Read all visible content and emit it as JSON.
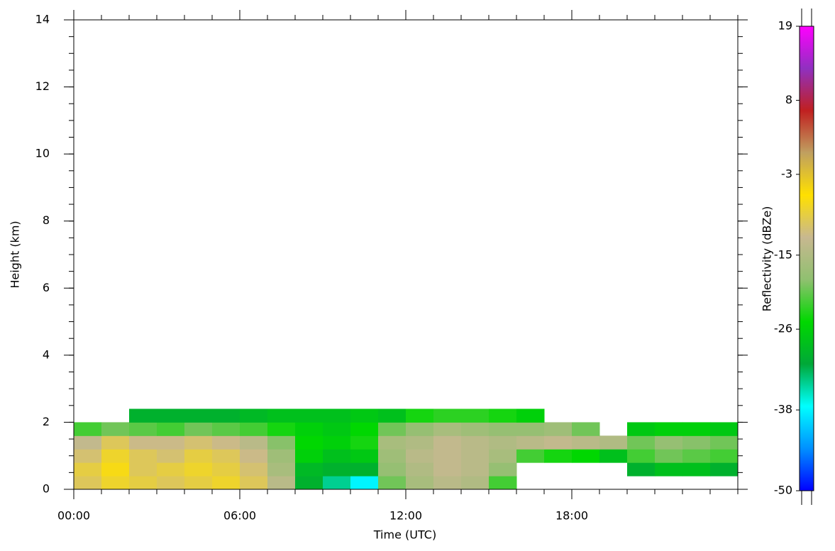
{
  "chart_data": {
    "type": "heatmap",
    "x_label": "Time (UTC)",
    "y_label": "Height (km)",
    "colorbar_label": "Reflectivity (dBZe)",
    "xlim": [
      0,
      24
    ],
    "xticks": [
      {
        "value": 0,
        "label": "00:00"
      },
      {
        "value": 6,
        "label": "06:00"
      },
      {
        "value": 12,
        "label": "12:00"
      },
      {
        "value": 18,
        "label": "18:00"
      }
    ],
    "ylim": [
      0,
      14
    ],
    "yticks": [
      0,
      2,
      4,
      6,
      8,
      10,
      12,
      14
    ],
    "zlim": [
      -50,
      19
    ],
    "zticks": [
      -50,
      -38,
      -26,
      -15,
      -3,
      8,
      19
    ],
    "colors": [
      "#0000ff",
      "#0090ff",
      "#00ffff",
      "#00a838",
      "#00d800",
      "#90c070",
      "#c8b890",
      "#ffe000",
      "#c0a060",
      "#c02020",
      "#9030c0",
      "#ff00ff"
    ],
    "xbins": [
      0,
      1,
      2,
      3,
      4,
      5,
      6,
      7,
      8,
      9,
      10,
      11,
      12,
      13,
      14,
      15,
      16,
      17,
      18,
      19,
      20,
      21,
      22,
      23,
      24
    ],
    "ybins": [
      0,
      0.4,
      0.8,
      1.2,
      1.6,
      2.0,
      2.4
    ],
    "z": [
      [
        -10,
        -8,
        -9,
        -10,
        -9,
        -8,
        -10,
        -14,
        -30,
        -34,
        -38,
        -20,
        -16,
        -14,
        -15,
        -22,
        null,
        null,
        null,
        null,
        null,
        null,
        null,
        null
      ],
      [
        -9,
        -7,
        -10,
        -9,
        -8,
        -9,
        -11,
        -16,
        -29,
        -30,
        -30,
        -18,
        -15,
        -13,
        -14,
        -18,
        null,
        null,
        null,
        null,
        -30,
        -28,
        -28,
        -30
      ],
      [
        -11,
        -8,
        -10,
        -11,
        -9,
        -10,
        -12,
        -17,
        -26,
        -28,
        -27,
        -17,
        -14,
        -13,
        -14,
        -16,
        -22,
        -24,
        -25,
        -28,
        -22,
        -20,
        -21,
        -22
      ],
      [
        -13,
        -10,
        -12,
        -12,
        -11,
        -12,
        -14,
        -19,
        -25,
        -26,
        -24,
        -16,
        -15,
        -13,
        -14,
        -15,
        -14,
        -13,
        -14,
        -15,
        -20,
        -18,
        -19,
        -20
      ],
      [
        -22,
        -20,
        -21,
        -22,
        -20,
        -21,
        -22,
        -24,
        -26,
        -27,
        -25,
        -20,
        -18,
        -16,
        -17,
        -18,
        -18,
        -17,
        -20,
        null,
        -27,
        -26,
        -26,
        -27
      ],
      [
        null,
        null,
        -30,
        -30,
        -30,
        -30,
        -29,
        -28,
        -28,
        -28,
        -27,
        -28,
        -24,
        -23,
        -23,
        -24,
        -26,
        null,
        null,
        null,
        null,
        null,
        null,
        null
      ]
    ]
  }
}
